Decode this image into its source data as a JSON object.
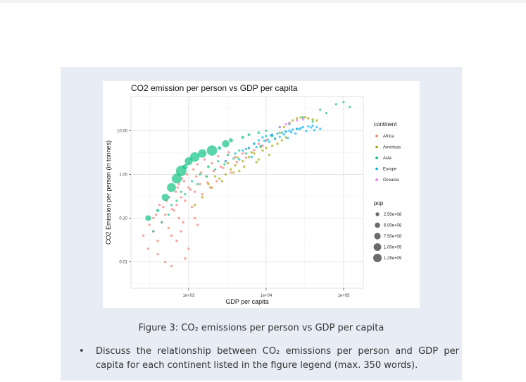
{
  "figure": {
    "caption": "Figure 3: CO₂ emissions per person vs GDP per capita"
  },
  "question": {
    "bullet": "•",
    "text": "Discuss the relationship between CO₂ emissions per person and GDP per capita for each continent listed in the figure legend (max. 350 words)."
  },
  "chart_data": {
    "type": "scatter",
    "title": "CO2 emission per person vs GDP per capita",
    "xlabel": "GDP per capita",
    "ylabel": "CO2 Emission per person (in tonnes)",
    "x_scale": "log10",
    "y_scale": "log10",
    "xlim": [
      180,
      180000
    ],
    "ylim": [
      0.0025,
      60
    ],
    "x_ticks": [
      1000,
      10000,
      100000
    ],
    "x_tick_labels": [
      "1e+03",
      "1e+04",
      "1e+05"
    ],
    "y_ticks": [
      0.01,
      0.1,
      1,
      10
    ],
    "y_tick_labels": [
      "0.01",
      "0.10",
      "1.00",
      "10.00"
    ],
    "grid": true,
    "legend_position": "right",
    "color_legend": {
      "title": "continent",
      "items": [
        {
          "name": "Africa",
          "color": "#f8766d"
        },
        {
          "name": "Americas",
          "color": "#a3a500"
        },
        {
          "name": "Asia",
          "color": "#00bf7d"
        },
        {
          "name": "Europe",
          "color": "#00b0f6"
        },
        {
          "name": "Oceania",
          "color": "#e76bf3"
        }
      ]
    },
    "size_legend": {
      "title": "pop",
      "items": [
        {
          "label": "2.50e+08",
          "value": 250000000
        },
        {
          "label": "5.00e+08",
          "value": 500000000
        },
        {
          "label": "7.50e+08",
          "value": 750000000
        },
        {
          "label": "1.00e+09",
          "value": 1000000000
        },
        {
          "label": "1.25e+09",
          "value": 1250000000
        }
      ]
    },
    "series": [
      {
        "name": "Africa",
        "points": [
          [
            300,
            0.02
          ],
          [
            350,
            0.05
          ],
          [
            400,
            0.03
          ],
          [
            450,
            0.08
          ],
          [
            500,
            0.12
          ],
          [
            550,
            0.06
          ],
          [
            600,
            0.04
          ],
          [
            650,
            0.15
          ],
          [
            700,
            0.2
          ],
          [
            750,
            0.1
          ],
          [
            800,
            0.3
          ],
          [
            850,
            0.08
          ],
          [
            900,
            0.25
          ],
          [
            1000,
            0.5
          ],
          [
            1100,
            0.18
          ],
          [
            1200,
            0.4
          ],
          [
            1300,
            0.07
          ],
          [
            1400,
            0.6
          ],
          [
            1500,
            0.35
          ],
          [
            1700,
            0.9
          ],
          [
            1900,
            0.5
          ],
          [
            2100,
            1.2
          ],
          [
            2300,
            0.7
          ],
          [
            2600,
            1.5
          ],
          [
            3000,
            2.0
          ],
          [
            3500,
            1.1
          ],
          [
            4000,
            2.5
          ],
          [
            5000,
            3.0
          ],
          [
            6000,
            4.0
          ],
          [
            8000,
            5.0
          ],
          [
            10000,
            6.0
          ],
          [
            12000,
            8.0
          ],
          [
            400,
            0.015
          ],
          [
            500,
            0.01
          ],
          [
            600,
            0.008
          ],
          [
            700,
            0.03
          ],
          [
            800,
            0.05
          ],
          [
            900,
            0.012
          ],
          [
            1000,
            0.02
          ],
          [
            1200,
            0.1
          ],
          [
            350,
            0.1
          ],
          [
            420,
            0.2
          ],
          [
            560,
            0.3
          ],
          [
            680,
            0.4
          ],
          [
            750,
            0.6
          ],
          [
            820,
            0.8
          ],
          [
            950,
            1.0
          ],
          [
            1150,
            1.3
          ],
          [
            1300,
            1.7
          ],
          [
            1600,
            2.2
          ],
          [
            260,
            0.04
          ],
          [
            310,
            0.07
          ],
          [
            380,
            0.12
          ],
          [
            470,
            0.18
          ],
          [
            520,
            0.25
          ],
          [
            610,
            0.16
          ],
          [
            720,
            0.5
          ],
          [
            870,
            0.7
          ],
          [
            1050,
            0.45
          ],
          [
            1250,
            0.9
          ],
          [
            1450,
            1.1
          ],
          [
            1750,
            0.65
          ],
          [
            2000,
            1.8
          ],
          [
            2400,
            2.6
          ],
          [
            2800,
            1.4
          ],
          [
            3300,
            3.2
          ],
          [
            4200,
            1.9
          ],
          [
            5500,
            2.4
          ],
          [
            7000,
            3.6
          ],
          [
            9000,
            4.5
          ]
        ]
      },
      {
        "name": "Americas",
        "points": [
          [
            1500,
            0.3
          ],
          [
            2000,
            0.5
          ],
          [
            2500,
            0.8
          ],
          [
            3000,
            1.0
          ],
          [
            3500,
            1.3
          ],
          [
            4000,
            1.6
          ],
          [
            4500,
            1.2
          ],
          [
            5000,
            2.0
          ],
          [
            6000,
            2.5
          ],
          [
            7000,
            3.0
          ],
          [
            8000,
            2.2
          ],
          [
            9000,
            3.5
          ],
          [
            10000,
            4.0
          ],
          [
            12000,
            4.5
          ],
          [
            14000,
            5.0
          ],
          [
            16000,
            6.0
          ],
          [
            18000,
            7.0
          ],
          [
            20000,
            15.0
          ],
          [
            22000,
            17.0
          ],
          [
            25000,
            19.0
          ],
          [
            28000,
            20.0
          ],
          [
            32000,
            20.0
          ],
          [
            35000,
            19.0
          ],
          [
            40000,
            18.0
          ],
          [
            45000,
            17.0
          ],
          [
            1800,
            0.6
          ],
          [
            2200,
            0.9
          ],
          [
            2700,
            0.7
          ],
          [
            3200,
            1.8
          ],
          [
            3800,
            1.1
          ],
          [
            4300,
            2.4
          ],
          [
            5200,
            1.5
          ],
          [
            6500,
            3.2
          ],
          [
            7500,
            1.9
          ],
          [
            8500,
            4.2
          ],
          [
            11000,
            2.8
          ],
          [
            13000,
            6.5
          ],
          [
            15000,
            9.0
          ],
          [
            17000,
            12.0
          ],
          [
            1200,
            0.2
          ]
        ]
      },
      {
        "name": "Asia",
        "points": [
          [
            300,
            0.1,
            380000000
          ],
          [
            400,
            0.15,
            120000000
          ],
          [
            500,
            0.3,
            600000000
          ],
          [
            600,
            0.5,
            900000000
          ],
          [
            700,
            0.8,
            1100000000
          ],
          [
            800,
            1.2,
            1250000000
          ],
          [
            900,
            1.5,
            300000000
          ],
          [
            1000,
            2.0,
            700000000
          ],
          [
            1200,
            2.5,
            1000000000
          ],
          [
            1500,
            3.0,
            800000000
          ],
          [
            2000,
            3.5,
            1200000000
          ],
          [
            2500,
            4.0,
            150000000
          ],
          [
            3000,
            5.0,
            600000000
          ],
          [
            3500,
            6.0,
            200000000
          ],
          [
            5000,
            7.0,
            100000000
          ],
          [
            6000,
            8.0,
            90000000
          ],
          [
            8000,
            9.0,
            70000000
          ],
          [
            10000,
            10.0,
            50000000
          ],
          [
            15000,
            12.0,
            40000000
          ],
          [
            20000,
            14.0,
            30000000
          ],
          [
            30000,
            20.0,
            3000000
          ],
          [
            50000,
            30.0,
            2000000
          ],
          [
            80000,
            40.0,
            1000000
          ],
          [
            100000,
            45.0,
            1000000
          ],
          [
            120000,
            35.0,
            1000000
          ],
          [
            600,
            0.2,
            20000000
          ],
          [
            800,
            0.4,
            30000000
          ],
          [
            1100,
            0.7,
            50000000
          ],
          [
            1400,
            1.0,
            60000000
          ],
          [
            1800,
            1.5,
            80000000
          ],
          [
            2400,
            2.0,
            40000000
          ],
          [
            3200,
            2.8,
            20000000
          ],
          [
            4500,
            3.5,
            25000000
          ],
          [
            7000,
            5.0,
            15000000
          ],
          [
            12000,
            7.5,
            10000000
          ],
          [
            18000,
            9.5,
            8000000
          ],
          [
            25000,
            11.0,
            5000000
          ],
          [
            40000,
            16.0,
            3000000
          ],
          [
            60000,
            25.0,
            2000000
          ],
          [
            350,
            0.05,
            15000000
          ],
          [
            450,
            0.08,
            18000000
          ],
          [
            550,
            0.12,
            22000000
          ],
          [
            700,
            0.25,
            25000000
          ],
          [
            900,
            0.35,
            30000000
          ],
          [
            1300,
            0.6,
            35000000
          ],
          [
            1700,
            0.9,
            40000000
          ],
          [
            2200,
            1.3,
            45000000
          ],
          [
            2900,
            1.7,
            50000000
          ],
          [
            3800,
            2.3,
            55000000
          ],
          [
            5500,
            3.0,
            60000000
          ]
        ]
      },
      {
        "name": "Europe",
        "points": [
          [
            3000,
            2.0
          ],
          [
            4000,
            3.0
          ],
          [
            5000,
            3.5
          ],
          [
            6000,
            4.0
          ],
          [
            7000,
            5.0
          ],
          [
            8000,
            6.0
          ],
          [
            9000,
            7.0
          ],
          [
            10000,
            7.5
          ],
          [
            12000,
            8.0
          ],
          [
            14000,
            8.5
          ],
          [
            16000,
            9.0
          ],
          [
            18000,
            9.5
          ],
          [
            20000,
            10.0
          ],
          [
            22000,
            10.5
          ],
          [
            25000,
            11.0
          ],
          [
            28000,
            11.5
          ],
          [
            30000,
            12.0
          ],
          [
            35000,
            12.5
          ],
          [
            40000,
            13.0
          ],
          [
            45000,
            12.0
          ],
          [
            50000,
            11.0
          ],
          [
            6500,
            2.5
          ],
          [
            8500,
            4.5
          ],
          [
            11000,
            5.5
          ],
          [
            13000,
            6.5
          ],
          [
            15000,
            7.2
          ],
          [
            17000,
            8.2
          ],
          [
            19000,
            6.8
          ],
          [
            21000,
            9.2
          ],
          [
            24000,
            8.6
          ],
          [
            27000,
            10.8
          ],
          [
            33000,
            9.8
          ],
          [
            38000,
            11.8
          ],
          [
            42000,
            10.2
          ],
          [
            4500,
            2.2
          ],
          [
            5500,
            3.8
          ],
          [
            7500,
            4.2
          ],
          [
            9500,
            5.8
          ],
          [
            10500,
            6.2
          ],
          [
            11500,
            7.8
          ]
        ]
      },
      {
        "name": "Oceania",
        "points": [
          [
            15000,
            12.0
          ],
          [
            18000,
            14.0
          ],
          [
            20000,
            15.0
          ],
          [
            25000,
            17.0
          ],
          [
            30000,
            18.0
          ]
        ]
      }
    ]
  }
}
